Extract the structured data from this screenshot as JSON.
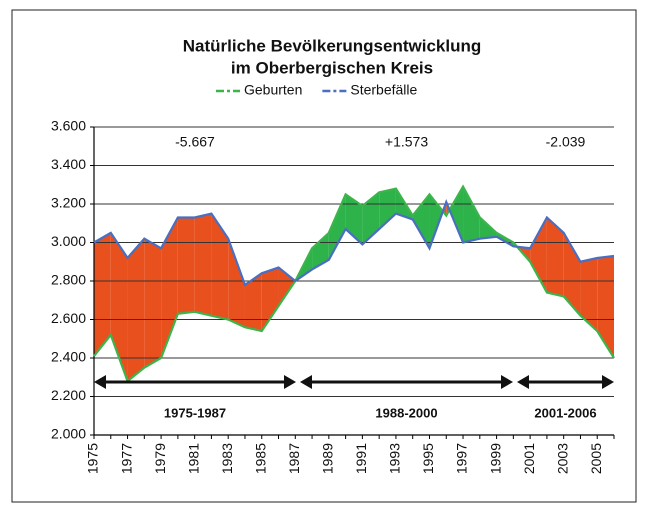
{
  "chart_data": {
    "type": "line",
    "title": "Natürliche Bevölkerungsentwicklung",
    "subtitle": "im Oberbergischen Kreis",
    "x": [
      1975,
      1976,
      1977,
      1978,
      1979,
      1980,
      1981,
      1982,
      1983,
      1984,
      1985,
      1986,
      1987,
      1988,
      1989,
      1990,
      1991,
      1992,
      1993,
      1994,
      1995,
      1996,
      1997,
      1998,
      1999,
      2000,
      2001,
      2002,
      2003,
      2004,
      2005,
      2006
    ],
    "series": [
      {
        "name": "Geburten",
        "color": "#3cb44b",
        "values": [
          2410,
          2520,
          2280,
          2350,
          2400,
          2630,
          2640,
          2620,
          2600,
          2560,
          2540,
          2670,
          2800,
          2970,
          3050,
          3250,
          3190,
          3260,
          3280,
          3140,
          3250,
          3140,
          3290,
          3130,
          3050,
          3000,
          2900,
          2740,
          2720,
          2620,
          2540,
          2400
        ]
      },
      {
        "name": "Sterbefälle",
        "color": "#4a6fc0",
        "values": [
          3000,
          3050,
          2920,
          3020,
          2970,
          3130,
          3130,
          3150,
          3020,
          2780,
          2840,
          2870,
          2800,
          2860,
          2910,
          3070,
          2990,
          3070,
          3150,
          3120,
          2970,
          3210,
          3000,
          3020,
          3030,
          2980,
          2970,
          3130,
          3050,
          2900,
          2920,
          2930
        ]
      }
    ],
    "fill_colors": {
      "deficit": "#e8501e",
      "surplus": "#2db34a"
    },
    "xlim": [
      1975,
      2006
    ],
    "xticks": [
      1975,
      1977,
      1979,
      1981,
      1983,
      1985,
      1987,
      1989,
      1991,
      1993,
      1995,
      1997,
      1999,
      2001,
      2003,
      2005
    ],
    "ylim": [
      2000,
      3600
    ],
    "yticks": [
      {
        "value": 2000,
        "label": "2.000"
      },
      {
        "value": 2200,
        "label": "2.200"
      },
      {
        "value": 2400,
        "label": "2.400"
      },
      {
        "value": 2600,
        "label": "2.600"
      },
      {
        "value": 2800,
        "label": "2.800"
      },
      {
        "value": 3000,
        "label": "3.000"
      },
      {
        "value": 3200,
        "label": "3.200"
      },
      {
        "value": 3400,
        "label": "3.400"
      },
      {
        "value": 3600,
        "label": "3.600"
      }
    ],
    "grid": true,
    "periods": [
      {
        "label": "1975-1987",
        "balance": "-5.667"
      },
      {
        "label": "1988-2000",
        "balance": "+1.573"
      },
      {
        "label": "2001-2006",
        "balance": "-2.039"
      }
    ]
  }
}
